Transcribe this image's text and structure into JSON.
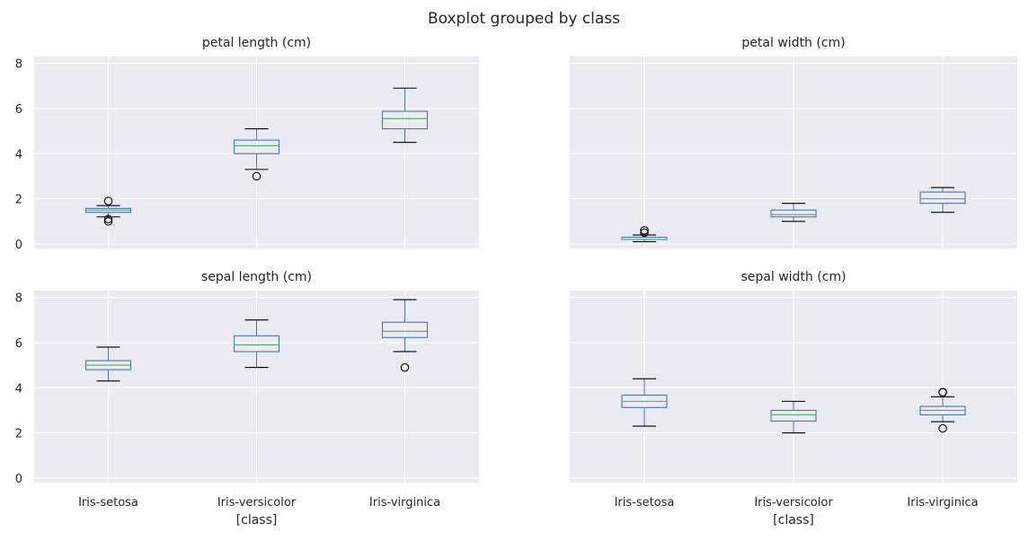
{
  "chart_data": {
    "type": "box",
    "suptitle": "Boxplot grouped by class",
    "categories": [
      "Iris-setosa",
      "Iris-versicolor",
      "Iris-virginica"
    ],
    "xlabel": "[class]",
    "ylim": [
      -0.2,
      8.3
    ],
    "yticks": [
      0,
      2,
      4,
      6,
      8
    ],
    "sharey": true,
    "grid": true,
    "colors": {
      "background": "#eaeaf2",
      "grid": "#ffffff",
      "box": "#4c72b0",
      "median": "#55a868",
      "whisker_cap": "#000000",
      "flier": "#000000"
    },
    "panels": [
      {
        "title": "petal length (cm)",
        "position": "top-left",
        "boxes": [
          {
            "category": "Iris-setosa",
            "whislo": 1.2,
            "q1": 1.4,
            "med": 1.5,
            "q3": 1.575,
            "whishi": 1.7,
            "fliers": [
              1.9,
              1.1,
              1.0
            ]
          },
          {
            "category": "Iris-versicolor",
            "whislo": 3.3,
            "q1": 4.0,
            "med": 4.35,
            "q3": 4.6,
            "whishi": 5.1,
            "fliers": [
              3.0
            ]
          },
          {
            "category": "Iris-virginica",
            "whislo": 4.5,
            "q1": 5.1,
            "med": 5.55,
            "q3": 5.875,
            "whishi": 6.9,
            "fliers": []
          }
        ]
      },
      {
        "title": "petal width (cm)",
        "position": "top-right",
        "boxes": [
          {
            "category": "Iris-setosa",
            "whislo": 0.1,
            "q1": 0.2,
            "med": 0.2,
            "q3": 0.3,
            "whishi": 0.4,
            "fliers": [
              0.5,
              0.6
            ]
          },
          {
            "category": "Iris-versicolor",
            "whislo": 1.0,
            "q1": 1.2,
            "med": 1.3,
            "q3": 1.5,
            "whishi": 1.8,
            "fliers": []
          },
          {
            "category": "Iris-virginica",
            "whislo": 1.4,
            "q1": 1.8,
            "med": 2.0,
            "q3": 2.3,
            "whishi": 2.5,
            "fliers": []
          }
        ]
      },
      {
        "title": "sepal length (cm)",
        "position": "bottom-left",
        "boxes": [
          {
            "category": "Iris-setosa",
            "whislo": 4.3,
            "q1": 4.8,
            "med": 5.0,
            "q3": 5.2,
            "whishi": 5.8,
            "fliers": []
          },
          {
            "category": "Iris-versicolor",
            "whislo": 4.9,
            "q1": 5.6,
            "med": 5.9,
            "q3": 6.3,
            "whishi": 7.0,
            "fliers": []
          },
          {
            "category": "Iris-virginica",
            "whislo": 5.6,
            "q1": 6.225,
            "med": 6.5,
            "q3": 6.9,
            "whishi": 7.9,
            "fliers": [
              4.9
            ]
          }
        ]
      },
      {
        "title": "sepal width (cm)",
        "position": "bottom-right",
        "boxes": [
          {
            "category": "Iris-setosa",
            "whislo": 2.3,
            "q1": 3.125,
            "med": 3.4,
            "q3": 3.675,
            "whishi": 4.4,
            "fliers": []
          },
          {
            "category": "Iris-versicolor",
            "whislo": 2.0,
            "q1": 2.525,
            "med": 2.8,
            "q3": 3.0,
            "whishi": 3.4,
            "fliers": []
          },
          {
            "category": "Iris-virginica",
            "whislo": 2.5,
            "q1": 2.8,
            "med": 3.0,
            "q3": 3.175,
            "whishi": 3.6,
            "fliers": [
              3.8,
              3.8,
              2.2
            ]
          }
        ]
      }
    ]
  }
}
